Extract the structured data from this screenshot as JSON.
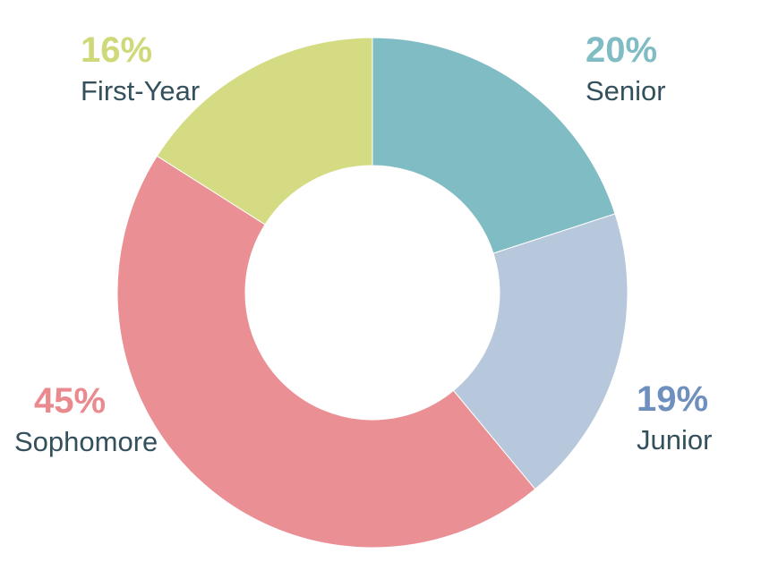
{
  "chart_data": {
    "type": "pie",
    "variant": "donut",
    "title": "",
    "categories": [
      "Senior",
      "Junior",
      "Sophomore",
      "First-Year"
    ],
    "values": [
      20,
      19,
      45,
      16
    ],
    "unit": "%",
    "colors": [
      "#80bcc3",
      "#b7c8dc",
      "#ea9094",
      "#d5db82"
    ],
    "label_colors": [
      "#80bcc3",
      "#6f8fbf",
      "#ea8a8e",
      "#cfd97a"
    ],
    "start_angle_deg": 0,
    "direction": "clockwise",
    "legend": "none",
    "labels": [
      {
        "pct": "20%",
        "name": "Senior"
      },
      {
        "pct": "19%",
        "name": "Junior"
      },
      {
        "pct": "45%",
        "name": "Sophomore"
      },
      {
        "pct": "16%",
        "name": "First-Year"
      }
    ]
  }
}
